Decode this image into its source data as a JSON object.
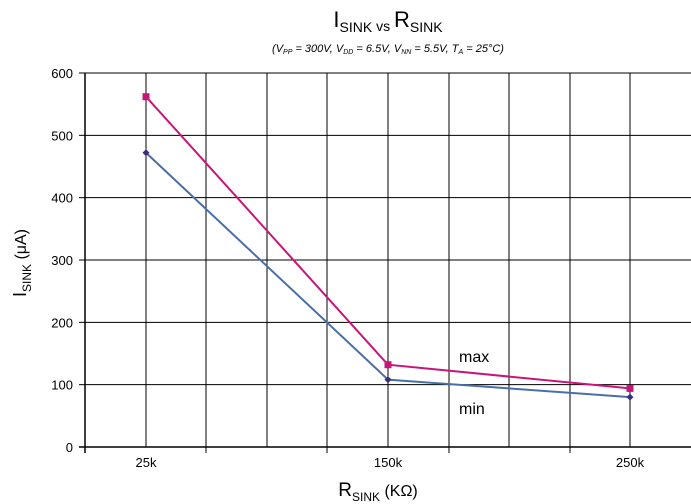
{
  "chart_data": {
    "type": "line",
    "title": {
      "main": "I",
      "main_sub": "SINK",
      "vs": " vs ",
      "main2": "R",
      "main2_sub": "SINK"
    },
    "subtitle": {
      "p1": "(V",
      "s1": "PP",
      "p2": " = 300V, V",
      "s2": "DD",
      "p3": " = 6.5V, V",
      "s3": "NN",
      "p4": " = 5.5V, T",
      "s4": "A",
      "p5": " = 25°C)"
    },
    "ylabel": {
      "main": "I",
      "sub": "SINK",
      "rest": " (μA)"
    },
    "xlabel": {
      "main": "R",
      "sub": "SINK",
      "rest": " (KΩ)"
    },
    "x_tick_labels": [
      "25k",
      "150k",
      "250k"
    ],
    "y_tick_labels": [
      "0",
      "100",
      "200",
      "300",
      "400",
      "500",
      "600"
    ],
    "ylim": [
      0,
      600
    ],
    "grid": true,
    "series": [
      {
        "name": "max",
        "color": "#c8157a",
        "marker": "square",
        "x": [
          25,
          150,
          250
        ],
        "y": [
          562,
          132,
          94
        ]
      },
      {
        "name": "min",
        "color": "#4a6fa8",
        "marker": "diamond",
        "x": [
          25,
          150,
          250
        ],
        "y": [
          472,
          108,
          80
        ]
      }
    ],
    "annotations": [
      "max",
      "min"
    ]
  }
}
